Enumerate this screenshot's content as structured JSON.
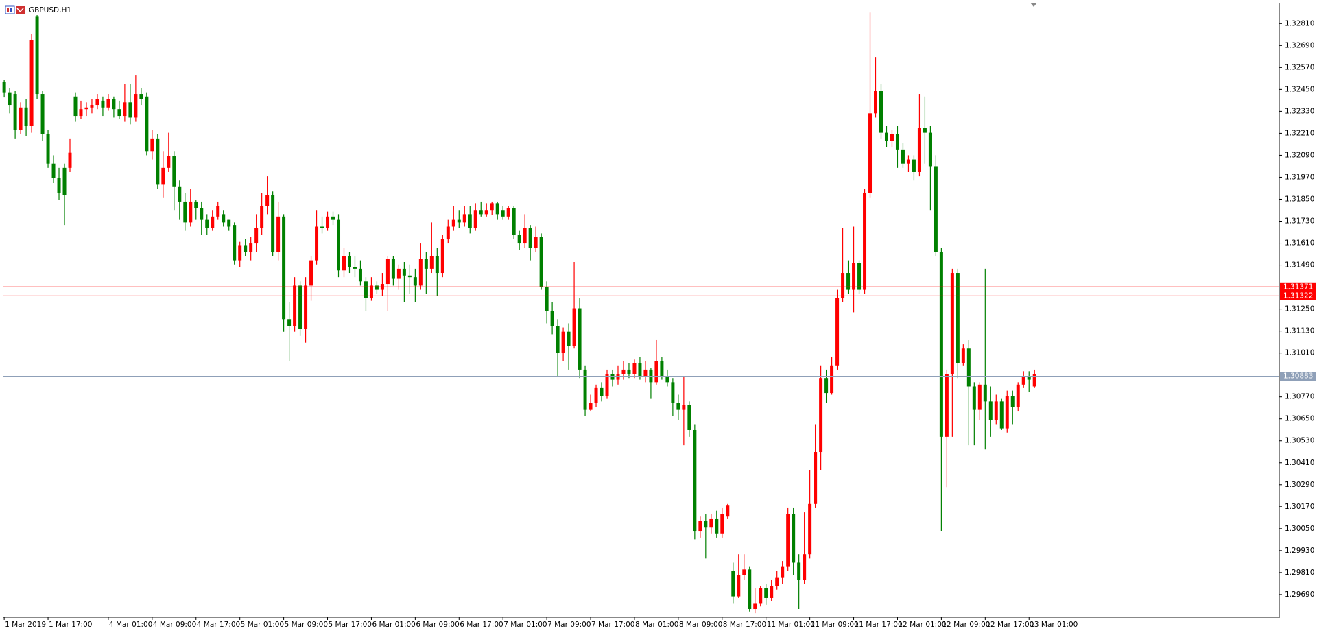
{
  "chart_data": {
    "type": "candlestick",
    "title": "GBPUSD,H1",
    "categories": [
      "1 Mar 2019",
      null,
      null,
      null,
      null,
      null,
      null,
      null,
      "1 Mar 17:00",
      null,
      null,
      null,
      null,
      null,
      null,
      null,
      null,
      null,
      null,
      "4 Mar 01:00",
      null,
      null,
      null,
      null,
      null,
      null,
      null,
      "4 Mar 09:00",
      null,
      null,
      null,
      null,
      null,
      null,
      null,
      "4 Mar 17:00",
      null,
      null,
      null,
      null,
      null,
      null,
      null,
      "5 Mar 01:00",
      null,
      null,
      null,
      null,
      null,
      null,
      null,
      "5 Mar 09:00",
      null,
      null,
      null,
      null,
      null,
      null,
      null,
      "5 Mar 17:00",
      null,
      null,
      null,
      null,
      null,
      null,
      null,
      "6 Mar 01:00",
      null,
      null,
      null,
      null,
      null,
      null,
      null,
      "6 Mar 09:00",
      null,
      null,
      null,
      null,
      null,
      null,
      null,
      "6 Mar 17:00",
      null,
      null,
      null,
      null,
      null,
      null,
      null,
      "7 Mar 01:00",
      null,
      null,
      null,
      null,
      null,
      null,
      null,
      "7 Mar 09:00",
      null,
      null,
      null,
      null,
      null,
      null,
      null,
      "7 Mar 17:00",
      null,
      null,
      null,
      null,
      null,
      null,
      null,
      "8 Mar 01:00",
      null,
      null,
      null,
      null,
      null,
      null,
      null,
      "8 Mar 09:00",
      null,
      null,
      null,
      null,
      null,
      null,
      null,
      "8 Mar 17:00",
      null,
      null,
      null,
      null,
      null,
      null,
      null,
      "11 Mar 01:00",
      null,
      null,
      null,
      null,
      null,
      null,
      null,
      "11 Mar 09:00",
      null,
      null,
      null,
      null,
      null,
      null,
      null,
      "11 Mar 17:00",
      null,
      null,
      null,
      null,
      null,
      null,
      null,
      "12 Mar 01:00",
      null,
      null,
      null,
      null,
      null,
      null,
      null,
      "12 Mar 09:00",
      null,
      null,
      null,
      null,
      null,
      null,
      null,
      "12 Mar 17:00",
      null,
      null,
      null,
      null,
      null,
      null,
      null,
      "13 Mar 01:00",
      null
    ],
    "open": [
      1.32489,
      1.32434,
      1.32425,
      1.32227,
      1.32351,
      1.3225,
      1.32847,
      1.32425,
      1.32205,
      1.32044,
      1.31966,
      1.32021,
      1.32021,
      1.32411,
      1.32305,
      1.32342,
      1.32351,
      1.32365,
      1.32388,
      1.32351,
      1.32397,
      1.32342,
      1.32305,
      1.32379,
      1.32296,
      1.32425,
      1.32411,
      1.32113,
      1.32182,
      1.31929,
      1.32021,
      1.32085,
      1.3192,
      1.31837,
      1.31723,
      1.31837,
      1.318,
      1.31737,
      1.31691,
      1.31755,
      1.31768,
      1.31737,
      1.31709,
      1.31516,
      1.31599,
      1.31562,
      1.31608,
      1.31691,
      1.31814,
      1.31874,
      1.31562,
      1.31755,
      1.31195,
      1.31158,
      1.31378,
      1.3114,
      1.31378,
      1.31516,
      1.317,
      1.31691,
      1.31755,
      1.31737,
      1.31461,
      1.31539,
      1.31479,
      1.3147,
      1.31401,
      1.31309,
      1.31378,
      1.31355,
      1.31387,
      1.31525,
      1.31415,
      1.3147,
      1.31433,
      1.31424,
      1.31378,
      1.31525,
      1.3147,
      1.31539,
      1.31447,
      1.31631,
      1.317,
      1.31737,
      1.31723,
      1.31768,
      1.31691,
      1.31791,
      1.31768,
      1.31791,
      1.31828,
      1.31791,
      1.31755,
      1.318,
      1.31654,
      1.31608,
      1.31691,
      1.31585,
      1.31645,
      1.31369,
      1.31241,
      1.31158,
      1.31011,
      1.31126,
      1.31048,
      1.31254,
      1.30919,
      1.30699,
      1.30736,
      1.30818,
      1.30773,
      1.30896,
      1.30864,
      1.30896,
      1.30919,
      1.30896,
      1.30956,
      1.30882,
      1.30919,
      1.3085,
      1.30965,
      1.30882,
      1.3085,
      1.30736,
      1.30699,
      1.30727,
      1.30589,
      1.30038,
      1.30093,
      1.30056,
      1.30102,
      1.30024,
      1.30116,
      1.29818,
      1.2968,
      1.29795,
      1.29827,
      1.29611,
      1.29643,
      1.29726,
      1.29671,
      1.29735,
      1.29781,
      1.29841,
      1.3013,
      1.29864,
      1.29772,
      1.2991,
      1.30185,
      1.30469,
      1.30873,
      1.30791,
      1.30942,
      1.31309,
      1.31447,
      1.31355,
      1.31502,
      1.31355,
      1.31883,
      1.32319,
      1.32443,
      1.32213,
      1.32168,
      1.32205,
      1.32122,
      1.32044,
      1.32067,
      1.31998,
      1.32241,
      1.32213,
      1.3203,
      1.31562,
      1.30552,
      1.30896,
      1.31447,
      1.30956,
      1.31034,
      1.30827,
      1.30699,
      1.30837,
      1.30745,
      1.30644,
      1.30745,
      1.30598,
      1.30773,
      1.30713,
      1.30837,
      1.30882,
      1.30827
    ],
    "high": [
      1.32503,
      1.32457,
      1.32443,
      1.32379,
      1.32397,
      1.32755,
      1.32856,
      1.32443,
      1.32227,
      1.3209,
      1.32021,
      1.32044,
      1.32182,
      1.32434,
      1.32388,
      1.32379,
      1.32397,
      1.32425,
      1.32411,
      1.32425,
      1.32411,
      1.32388,
      1.3248,
      1.3248,
      1.32526,
      1.32457,
      1.32434,
      1.32227,
      1.32205,
      1.32113,
      1.32213,
      1.32113,
      1.31952,
      1.31883,
      1.31906,
      1.31846,
      1.31837,
      1.31768,
      1.31791,
      1.31837,
      1.31791,
      1.31737,
      1.31723,
      1.31617,
      1.31631,
      1.31645,
      1.31768,
      1.31883,
      1.31975,
      1.31892,
      1.31837,
      1.31768,
      1.31287,
      1.31424,
      1.31401,
      1.31424,
      1.31539,
      1.31791,
      1.31755,
      1.31782,
      1.31782,
      1.31768,
      1.31585,
      1.31562,
      1.31539,
      1.31516,
      1.31424,
      1.31424,
      1.31401,
      1.31447,
      1.31539,
      1.31539,
      1.31493,
      1.31507,
      1.31493,
      1.3147,
      1.31608,
      1.31562,
      1.31723,
      1.31585,
      1.31654,
      1.31737,
      1.31814,
      1.31791,
      1.31814,
      1.31814,
      1.31828,
      1.31837,
      1.31828,
      1.31837,
      1.31837,
      1.31814,
      1.31814,
      1.31814,
      1.31677,
      1.31768,
      1.31709,
      1.317,
      1.31663,
      1.31401,
      1.31287,
      1.31195,
      1.31149,
      1.31172,
      1.31507,
      1.31309,
      1.30942,
      1.30782,
      1.30837,
      1.3085,
      1.30919,
      1.30919,
      1.30942,
      1.30965,
      1.30956,
      1.30974,
      1.30988,
      1.30965,
      1.30928,
      1.3108,
      1.30988,
      1.30919,
      1.30873,
      1.30782,
      1.30882,
      1.30745,
      1.30621,
      1.30116,
      1.3013,
      1.3013,
      1.30148,
      1.30162,
      1.30185,
      1.29864,
      1.2991,
      1.2991,
      1.29841,
      1.29726,
      1.29735,
      1.29749,
      1.29772,
      1.29818,
      1.29873,
      1.30162,
      1.30162,
      1.2991,
      1.30139,
      1.30369,
      1.30621,
      1.30942,
      1.30919,
      1.30988,
      1.31355,
      1.31691,
      1.31516,
      1.317,
      1.31516,
      1.31906,
      1.3287,
      1.32627,
      1.3248,
      1.3225,
      1.32227,
      1.3225,
      1.32159,
      1.3209,
      1.3209,
      1.32425,
      1.32411,
      1.3225,
      1.3209,
      1.31585,
      1.30919,
      1.3147,
      1.3147,
      1.31057,
      1.3108,
      1.3085,
      1.3085,
      1.3147,
      1.30827,
      1.30782,
      1.30759,
      1.30804,
      1.30804,
      1.3085,
      1.3091,
      1.3091,
      1.30919
    ],
    "low": [
      1.32406,
      1.32319,
      1.32182,
      1.32205,
      1.32196,
      1.32213,
      1.32397,
      1.32168,
      1.32021,
      1.31938,
      1.31846,
      1.31709,
      1.31998,
      1.32273,
      1.32287,
      1.32305,
      1.32319,
      1.32342,
      1.32305,
      1.32333,
      1.32296,
      1.32287,
      1.32273,
      1.32259,
      1.32273,
      1.32365,
      1.3209,
      1.32067,
      1.31906,
      1.3186,
      1.31998,
      1.31791,
      1.31737,
      1.31677,
      1.317,
      1.31737,
      1.31654,
      1.31654,
      1.31677,
      1.31737,
      1.317,
      1.31677,
      1.31493,
      1.31479,
      1.31539,
      1.31516,
      1.31562,
      1.31654,
      1.31768,
      1.31539,
      1.31516,
      1.31126,
      1.30965,
      1.31126,
      1.31103,
      1.31066,
      1.31295,
      1.31493,
      1.31663,
      1.31677,
      1.31709,
      1.31424,
      1.31424,
      1.31447,
      1.31424,
      1.31378,
      1.31241,
      1.31295,
      1.31332,
      1.31323,
      1.31241,
      1.31378,
      1.31355,
      1.31287,
      1.31332,
      1.31287,
      1.31355,
      1.31332,
      1.31447,
      1.31323,
      1.31424,
      1.31608,
      1.31677,
      1.31691,
      1.317,
      1.31663,
      1.31677,
      1.31755,
      1.31755,
      1.31764,
      1.31737,
      1.31737,
      1.31737,
      1.31631,
      1.31571,
      1.31585,
      1.31516,
      1.31562,
      1.31355,
      1.31172,
      1.31112,
      1.30882,
      1.30965,
      1.30919,
      1.31034,
      1.30873,
      1.30667,
      1.3069,
      1.30713,
      1.30745,
      1.30759,
      1.30827,
      1.30837,
      1.30864,
      1.30873,
      1.30873,
      1.30864,
      1.3085,
      1.30759,
      1.30837,
      1.30864,
      1.30827,
      1.30667,
      1.30644,
      1.30506,
      1.30552,
      1.29992,
      1.30001,
      1.29887,
      1.30024,
      1.30001,
      1.30001,
      1.30102,
      1.29643,
      1.29671,
      1.29772,
      1.29597,
      1.29588,
      1.29625,
      1.29634,
      1.29653,
      1.29717,
      1.29749,
      1.29818,
      1.29795,
      1.29611,
      1.29749,
      1.29887,
      1.30162,
      1.30369,
      1.30736,
      1.30782,
      1.30919,
      1.31287,
      1.31332,
      1.31232,
      1.31332,
      1.31332,
      1.3186,
      1.32296,
      1.32182,
      1.32136,
      1.32136,
      1.32021,
      1.32021,
      1.31998,
      1.31952,
      1.31975,
      1.32044,
      1.31791,
      1.31539,
      1.30038,
      1.30277,
      1.30552,
      1.30873,
      1.30942,
      1.30506,
      1.30506,
      1.30644,
      1.30483,
      1.30552,
      1.30621,
      1.30589,
      1.30575,
      1.30621,
      1.3069,
      1.30818,
      1.30795,
      1.30818
    ],
    "close": [
      1.32434,
      1.32365,
      1.32227,
      1.32351,
      1.3225,
      1.32718,
      1.32425,
      1.32205,
      1.32044,
      1.31966,
      1.31883,
      1.31874,
      1.32104,
      1.32305,
      1.32342,
      1.32351,
      1.32365,
      1.32397,
      1.32351,
      1.32397,
      1.32342,
      1.32305,
      1.32379,
      1.32296,
      1.32425,
      1.32397,
      1.32113,
      1.32182,
      1.31929,
      1.32021,
      1.32085,
      1.3192,
      1.31837,
      1.31723,
      1.31837,
      1.318,
      1.31737,
      1.31691,
      1.31755,
      1.31814,
      1.31723,
      1.317,
      1.31516,
      1.31599,
      1.31562,
      1.31608,
      1.31691,
      1.31814,
      1.31874,
      1.31562,
      1.31755,
      1.31195,
      1.31158,
      1.31378,
      1.3114,
      1.31378,
      1.31516,
      1.317,
      1.31691,
      1.31755,
      1.31737,
      1.31461,
      1.31539,
      1.31479,
      1.3147,
      1.31401,
      1.31309,
      1.31378,
      1.31355,
      1.31387,
      1.31525,
      1.31415,
      1.3147,
      1.31433,
      1.31424,
      1.31378,
      1.31525,
      1.3147,
      1.31539,
      1.31447,
      1.31631,
      1.317,
      1.31737,
      1.31723,
      1.31768,
      1.31691,
      1.31791,
      1.31768,
      1.31791,
      1.31828,
      1.31768,
      1.31755,
      1.318,
      1.31654,
      1.31608,
      1.31691,
      1.31585,
      1.31645,
      1.31369,
      1.31241,
      1.31158,
      1.31011,
      1.31126,
      1.31048,
      1.31254,
      1.30919,
      1.30699,
      1.30736,
      1.30818,
      1.30773,
      1.30896,
      1.30864,
      1.30896,
      1.30919,
      1.30896,
      1.30956,
      1.30882,
      1.30919,
      1.3085,
      1.30965,
      1.30882,
      1.3085,
      1.30736,
      1.30699,
      1.30727,
      1.30589,
      1.30038,
      1.30093,
      1.30056,
      1.30102,
      1.30024,
      1.3013,
      1.30176,
      1.2968,
      1.29795,
      1.29827,
      1.29611,
      1.29643,
      1.29726,
      1.29671,
      1.29735,
      1.29781,
      1.29841,
      1.3013,
      1.29864,
      1.29772,
      1.2991,
      1.30185,
      1.30469,
      1.30873,
      1.30791,
      1.30942,
      1.31309,
      1.31447,
      1.31355,
      1.31502,
      1.31355,
      1.31883,
      1.32319,
      1.32443,
      1.32213,
      1.32168,
      1.32205,
      1.32122,
      1.32044,
      1.32067,
      1.31998,
      1.32241,
      1.32213,
      1.3203,
      1.31562,
      1.30552,
      1.30896,
      1.31447,
      1.30956,
      1.31034,
      1.30827,
      1.30699,
      1.30837,
      1.30745,
      1.30644,
      1.30745,
      1.30598,
      1.30773,
      1.30713,
      1.30837,
      1.30882,
      1.30864,
      1.30896
    ],
    "up_color": "#ff0000",
    "down_color": "#008000",
    "ylim": [
      1.29566,
      1.32916
    ],
    "yticks": [
      {
        "value": 1.3281,
        "label": "1.32810"
      },
      {
        "value": 1.3269,
        "label": "1.32690"
      },
      {
        "value": 1.3257,
        "label": "1.32570"
      },
      {
        "value": 1.3245,
        "label": "1.32450"
      },
      {
        "value": 1.3233,
        "label": "1.32330"
      },
      {
        "value": 1.3221,
        "label": "1.32210"
      },
      {
        "value": 1.3209,
        "label": "1.32090"
      },
      {
        "value": 1.3197,
        "label": "1.31970"
      },
      {
        "value": 1.3185,
        "label": "1.31850"
      },
      {
        "value": 1.3173,
        "label": "1.31730"
      },
      {
        "value": 1.3161,
        "label": "1.31610"
      },
      {
        "value": 1.3149,
        "label": "1.31490"
      },
      {
        "value": 1.3125,
        "label": "1.31250"
      },
      {
        "value": 1.3113,
        "label": "1.31130"
      },
      {
        "value": 1.3101,
        "label": "1.31010"
      },
      {
        "value": 1.3077,
        "label": "1.30770"
      },
      {
        "value": 1.3065,
        "label": "1.30650"
      },
      {
        "value": 1.3053,
        "label": "1.30530"
      },
      {
        "value": 1.3041,
        "label": "1.30410"
      },
      {
        "value": 1.3029,
        "label": "1.30290"
      },
      {
        "value": 1.3017,
        "label": "1.30170"
      },
      {
        "value": 1.3005,
        "label": "1.30050"
      },
      {
        "value": 1.2993,
        "label": "1.29930"
      },
      {
        "value": 1.2981,
        "label": "1.29810"
      },
      {
        "value": 1.2969,
        "label": "1.29690"
      }
    ],
    "hlines": [
      {
        "value": 1.31371,
        "color": "#ff0000"
      },
      {
        "value": 1.31322,
        "color": "#ff0000"
      },
      {
        "value": 1.30883,
        "color": "#8fa0b8"
      }
    ]
  }
}
